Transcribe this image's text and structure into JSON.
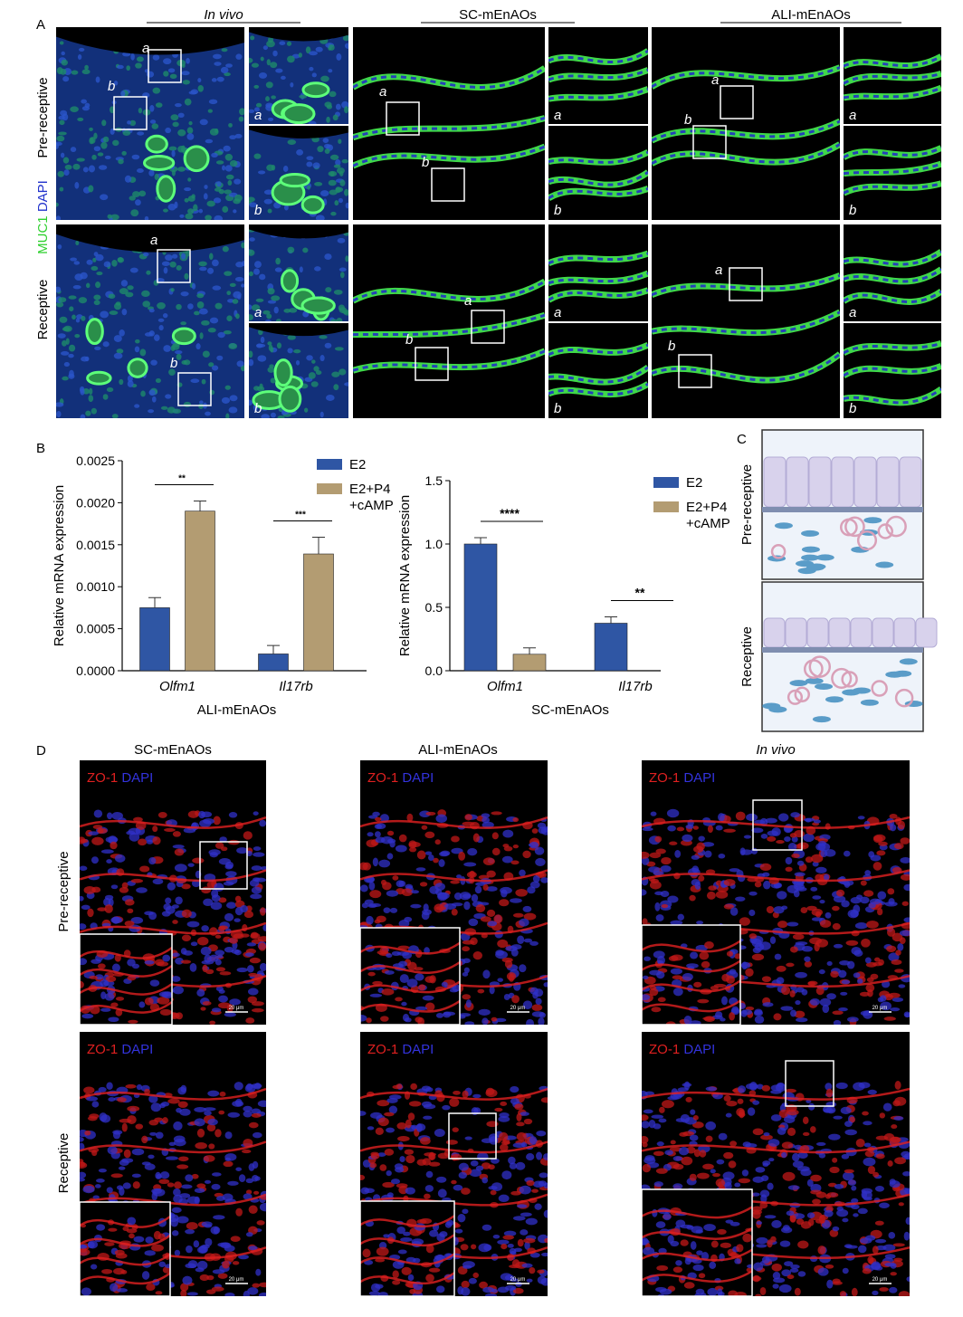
{
  "panel_a": {
    "label": "A",
    "columns": [
      "In vivo",
      "SC-mEnAOs",
      "ALI-mEnAOs"
    ],
    "rows": [
      "Pre-receptive",
      "Receptive"
    ],
    "stain": [
      "MUC1",
      "DAPI"
    ],
    "insets": [
      "a",
      "b"
    ]
  },
  "panel_b": {
    "label": "B"
  },
  "chart_data": [
    {
      "type": "bar",
      "ylabel": "Relative mRNA expression",
      "xlabel": "ALI-mEnAOs",
      "categories": [
        "Olfm1",
        "Il17rb"
      ],
      "series": [
        {
          "name": "E2",
          "color": "#2f56a4",
          "values": [
            0.00075,
            0.0002
          ],
          "errors": [
            0.00012,
            0.0001
          ]
        },
        {
          "name": "E2+P4 +cAMP",
          "color": "#b39c72",
          "values": [
            0.0019,
            0.00139
          ],
          "errors": [
            0.00012,
            0.0002
          ]
        }
      ],
      "annotations": [
        "**",
        "***"
      ],
      "ylim": [
        0,
        0.0025
      ],
      "yticks": [
        {
          "value": 0,
          "label": "0.0000"
        },
        {
          "value": 0.0005,
          "label": "0.0005"
        },
        {
          "value": 0.001,
          "label": "0.0010"
        },
        {
          "value": 0.0015,
          "label": "0.0015"
        },
        {
          "value": 0.002,
          "label": "0.0020"
        },
        {
          "value": 0.0025,
          "label": "0.0025"
        }
      ]
    },
    {
      "type": "bar",
      "ylabel": "Relative mRNA expression",
      "xlabel": "SC-mEnAOs",
      "categories": [
        "Olfm1",
        "Il17rb"
      ],
      "series": [
        {
          "name": "E2",
          "color": "#2f56a4",
          "values": [
            1.0,
            0.375
          ],
          "errors": [
            0.05,
            0.05
          ]
        },
        {
          "name": "E2+P4 +cAMP",
          "color": "#b39c72",
          "values": [
            0.13,
            null
          ],
          "errors": [
            0.05,
            null
          ]
        }
      ],
      "annotations": [
        "****",
        "**"
      ],
      "ylim": [
        0,
        1.5
      ],
      "yticks": [
        {
          "value": 0,
          "label": "0.0"
        },
        {
          "value": 0.5,
          "label": "0.5"
        },
        {
          "value": 1,
          "label": "1.0"
        },
        {
          "value": 1.5,
          "label": "1.5"
        }
      ]
    }
  ],
  "panel_c": {
    "label": "C",
    "rows": [
      "Pre-receptive",
      "Receptive"
    ]
  },
  "panel_d": {
    "label": "D",
    "columns": [
      "SC-mEnAOs",
      "ALI-mEnAOs",
      "In vivo"
    ],
    "rows": [
      "Pre-receptive",
      "Receptive"
    ],
    "stain": [
      "ZO-1",
      "DAPI"
    ],
    "scale_bar": "20 μm"
  }
}
